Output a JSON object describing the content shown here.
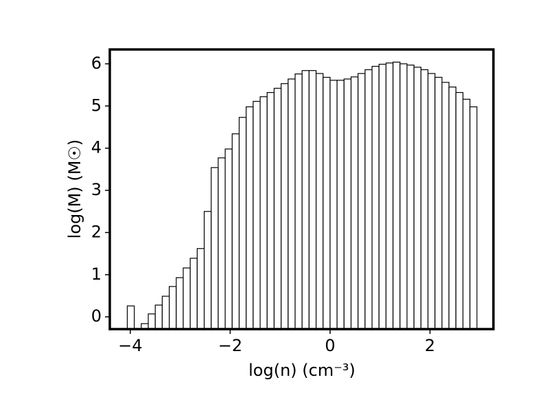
{
  "chart_data": {
    "type": "histogram",
    "x_label": "log(n) (cm⁻³)",
    "y_label": "log(M) (M☉)",
    "bins": [
      -4.06,
      -3.92,
      -3.78,
      -3.64,
      -3.5,
      -3.36,
      -3.22,
      -3.08,
      -2.94,
      -2.8,
      -2.66,
      -2.52,
      -2.38,
      -2.24,
      -2.1,
      -1.96,
      -1.82,
      -1.68,
      -1.54,
      -1.4,
      -1.26,
      -1.12,
      -0.98,
      -0.84,
      -0.7,
      -0.56,
      -0.42,
      -0.28,
      -0.14,
      0,
      0.14,
      0.28,
      0.42,
      0.56,
      0.7,
      0.84,
      0.98,
      1.12,
      1.26,
      1.4,
      1.54,
      1.68,
      1.82,
      1.96,
      2.1,
      2.24,
      2.38,
      2.52,
      2.66,
      2.8,
      2.94
    ],
    "counts": [
      0.26,
      null,
      -0.16,
      0.07,
      0.28,
      0.49,
      0.72,
      0.93,
      1.16,
      1.39,
      1.62,
      2.5,
      3.54,
      3.77,
      3.98,
      4.34,
      4.73,
      4.98,
      5.11,
      5.22,
      5.32,
      5.42,
      5.53,
      5.64,
      5.76,
      5.84,
      5.84,
      5.77,
      5.68,
      5.61,
      5.61,
      5.64,
      5.69,
      5.77,
      5.86,
      5.94,
      5.99,
      6.02,
      6.04,
      6.0,
      5.97,
      5.92,
      5.86,
      5.77,
      5.68,
      5.56,
      5.45,
      5.32,
      5.16,
      4.98
    ],
    "color": "#ffffff",
    "edgecolor": "#000000",
    "xlim": [
      -4.41,
      3.27
    ],
    "xticks": [
      {
        "value": -4,
        "label": "−4"
      },
      {
        "value": -2,
        "label": "−2"
      },
      0,
      2
    ],
    "ylim": [
      -0.29,
      6.34
    ],
    "yticks": [
      0,
      1,
      2,
      3,
      4,
      5,
      6
    ],
    "grid": false
  }
}
